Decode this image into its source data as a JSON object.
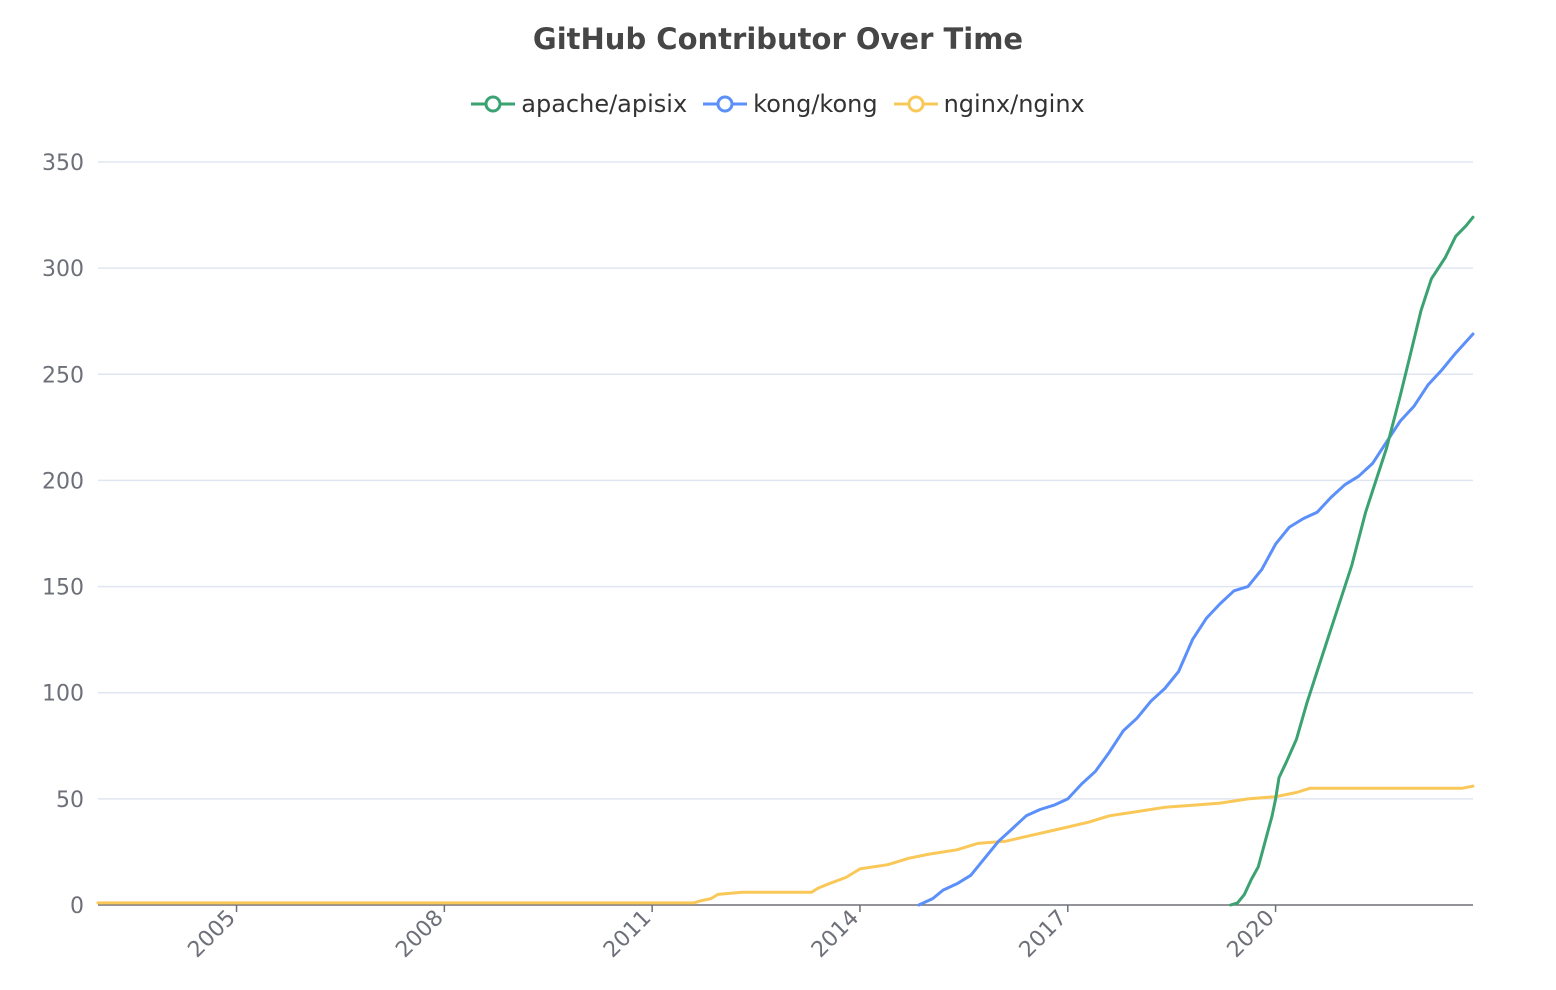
{
  "chart_data": {
    "type": "line",
    "title": "GitHub Contributor Over Time",
    "xlabel": "",
    "ylabel": "",
    "x_range": [
      2003.0,
      2022.85
    ],
    "xticks": [
      {
        "value": 2005.0,
        "label": "2005"
      },
      {
        "value": 2008.0,
        "label": "2008"
      },
      {
        "value": 2011.0,
        "label": "2011"
      },
      {
        "value": 2014.0,
        "label": "2014"
      },
      {
        "value": 2017.0,
        "label": "2017"
      },
      {
        "value": 2020.0,
        "label": "2020"
      }
    ],
    "ylim": [
      0,
      350
    ],
    "yticks": [
      0,
      50,
      100,
      150,
      200,
      250,
      300,
      350
    ],
    "grid": true,
    "legend_position": "top-center",
    "series": [
      {
        "name": "apache/apisix",
        "color": "#3ba272",
        "points": [
          [
            2019.35,
            0
          ],
          [
            2019.45,
            1
          ],
          [
            2019.55,
            5
          ],
          [
            2019.65,
            12
          ],
          [
            2019.75,
            18
          ],
          [
            2019.85,
            30
          ],
          [
            2019.95,
            42
          ],
          [
            2020.0,
            50
          ],
          [
            2020.05,
            60
          ],
          [
            2020.15,
            67
          ],
          [
            2020.3,
            78
          ],
          [
            2020.45,
            95
          ],
          [
            2020.6,
            110
          ],
          [
            2020.75,
            125
          ],
          [
            2020.9,
            140
          ],
          [
            2021.1,
            160
          ],
          [
            2021.3,
            185
          ],
          [
            2021.45,
            200
          ],
          [
            2021.6,
            215
          ],
          [
            2021.8,
            240
          ],
          [
            2021.95,
            260
          ],
          [
            2022.1,
            280
          ],
          [
            2022.25,
            295
          ],
          [
            2022.45,
            305
          ],
          [
            2022.6,
            315
          ],
          [
            2022.75,
            320
          ],
          [
            2022.85,
            324
          ]
        ]
      },
      {
        "name": "kong/kong",
        "color": "#5b8ff9",
        "points": [
          [
            2014.85,
            0
          ],
          [
            2015.05,
            3
          ],
          [
            2015.2,
            7
          ],
          [
            2015.4,
            10
          ],
          [
            2015.6,
            14
          ],
          [
            2015.8,
            22
          ],
          [
            2016.0,
            30
          ],
          [
            2016.2,
            36
          ],
          [
            2016.4,
            42
          ],
          [
            2016.6,
            45
          ],
          [
            2016.8,
            47
          ],
          [
            2017.0,
            50
          ],
          [
            2017.2,
            57
          ],
          [
            2017.4,
            63
          ],
          [
            2017.6,
            72
          ],
          [
            2017.8,
            82
          ],
          [
            2018.0,
            88
          ],
          [
            2018.2,
            96
          ],
          [
            2018.4,
            102
          ],
          [
            2018.6,
            110
          ],
          [
            2018.8,
            125
          ],
          [
            2019.0,
            135
          ],
          [
            2019.2,
            142
          ],
          [
            2019.4,
            148
          ],
          [
            2019.6,
            150
          ],
          [
            2019.8,
            158
          ],
          [
            2020.0,
            170
          ],
          [
            2020.2,
            178
          ],
          [
            2020.4,
            182
          ],
          [
            2020.6,
            185
          ],
          [
            2020.8,
            192
          ],
          [
            2021.0,
            198
          ],
          [
            2021.2,
            202
          ],
          [
            2021.4,
            208
          ],
          [
            2021.6,
            218
          ],
          [
            2021.8,
            228
          ],
          [
            2022.0,
            235
          ],
          [
            2022.2,
            245
          ],
          [
            2022.4,
            252
          ],
          [
            2022.6,
            260
          ],
          [
            2022.85,
            269
          ]
        ]
      },
      {
        "name": "nginx/nginx",
        "color": "#fac858",
        "points": [
          [
            2003.0,
            1
          ],
          [
            2011.6,
            1
          ],
          [
            2011.7,
            2
          ],
          [
            2011.85,
            3
          ],
          [
            2011.95,
            5
          ],
          [
            2012.3,
            6
          ],
          [
            2013.3,
            6
          ],
          [
            2013.4,
            8
          ],
          [
            2013.55,
            10
          ],
          [
            2013.8,
            13
          ],
          [
            2014.0,
            17
          ],
          [
            2014.4,
            19
          ],
          [
            2014.7,
            22
          ],
          [
            2015.0,
            24
          ],
          [
            2015.4,
            26
          ],
          [
            2015.7,
            29
          ],
          [
            2016.1,
            30
          ],
          [
            2016.5,
            33
          ],
          [
            2016.9,
            36
          ],
          [
            2017.3,
            39
          ],
          [
            2017.6,
            42
          ],
          [
            2018.0,
            44
          ],
          [
            2018.4,
            46
          ],
          [
            2018.8,
            47
          ],
          [
            2019.2,
            48
          ],
          [
            2019.6,
            50
          ],
          [
            2020.0,
            51
          ],
          [
            2020.3,
            53
          ],
          [
            2020.5,
            55
          ],
          [
            2022.7,
            55
          ],
          [
            2022.85,
            56
          ]
        ]
      }
    ]
  }
}
